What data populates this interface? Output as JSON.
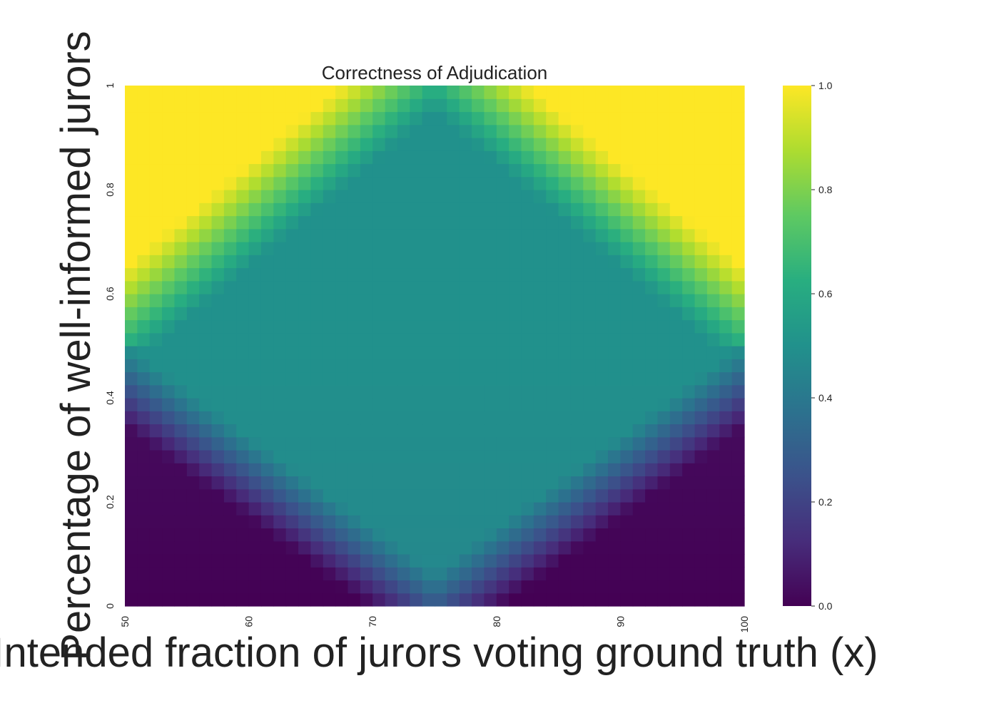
{
  "chart_data": {
    "type": "heatmap",
    "title": "Correctness of Adjudication",
    "xlabel": "Intended fraction of jurors voting ground truth (x)",
    "ylabel": "Percentage of well-informed jurors",
    "xlim": [
      50,
      100
    ],
    "ylim": [
      0,
      1
    ],
    "x_tick_labels": [
      "50",
      "60",
      "70",
      "80",
      "90",
      "100"
    ],
    "y_tick_labels": [
      "0",
      "0.2",
      "0.4",
      "0.6",
      "0.8",
      "1"
    ],
    "colorbar": {
      "colormap": "viridis",
      "range": [
        0,
        1
      ],
      "tick_labels": [
        "0.0",
        "0.2",
        "0.4",
        "0.6",
        "0.8",
        "1.0"
      ]
    },
    "grid": {
      "x_start": 50,
      "x_end": 100,
      "x_count": 50,
      "y_start": 0,
      "y_end": 1,
      "y_count": 40,
      "symmetric_about_x": 75,
      "description_values": {
        "corner_low_y": 0.0,
        "corner_high_y": 1.0,
        "center_plateau": 0.5,
        "bottom_center": 0.45
      }
    }
  }
}
